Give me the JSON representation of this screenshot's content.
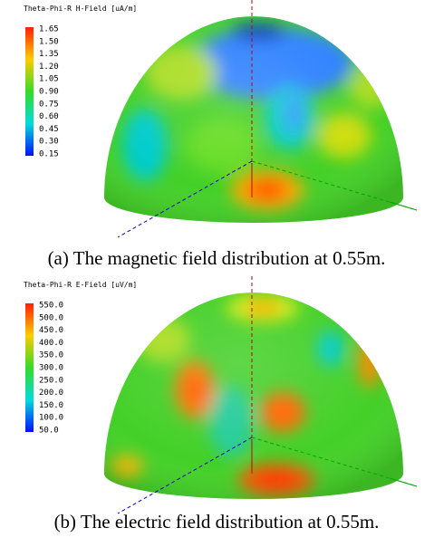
{
  "panels": [
    {
      "colorbar_title": "Theta-Phi-R H-Field [uA/m]",
      "colorbar_labels": [
        "1.65",
        "1.50",
        "1.35",
        "1.20",
        "1.05",
        "0.90",
        "0.75",
        "0.60",
        "0.45",
        "0.30",
        "0.15"
      ],
      "caption": "(a) The magnetic field distribution at 0.55m."
    },
    {
      "colorbar_title": "Theta-Phi-R E-Field [uV/m]",
      "colorbar_labels": [
        "550.0",
        "500.0",
        "450.0",
        "400.0",
        "350.0",
        "300.0",
        "250.0",
        "200.0",
        "150.0",
        "100.0",
        "50.0"
      ],
      "caption": "(b) The electric field distribution at 0.55m."
    }
  ]
}
